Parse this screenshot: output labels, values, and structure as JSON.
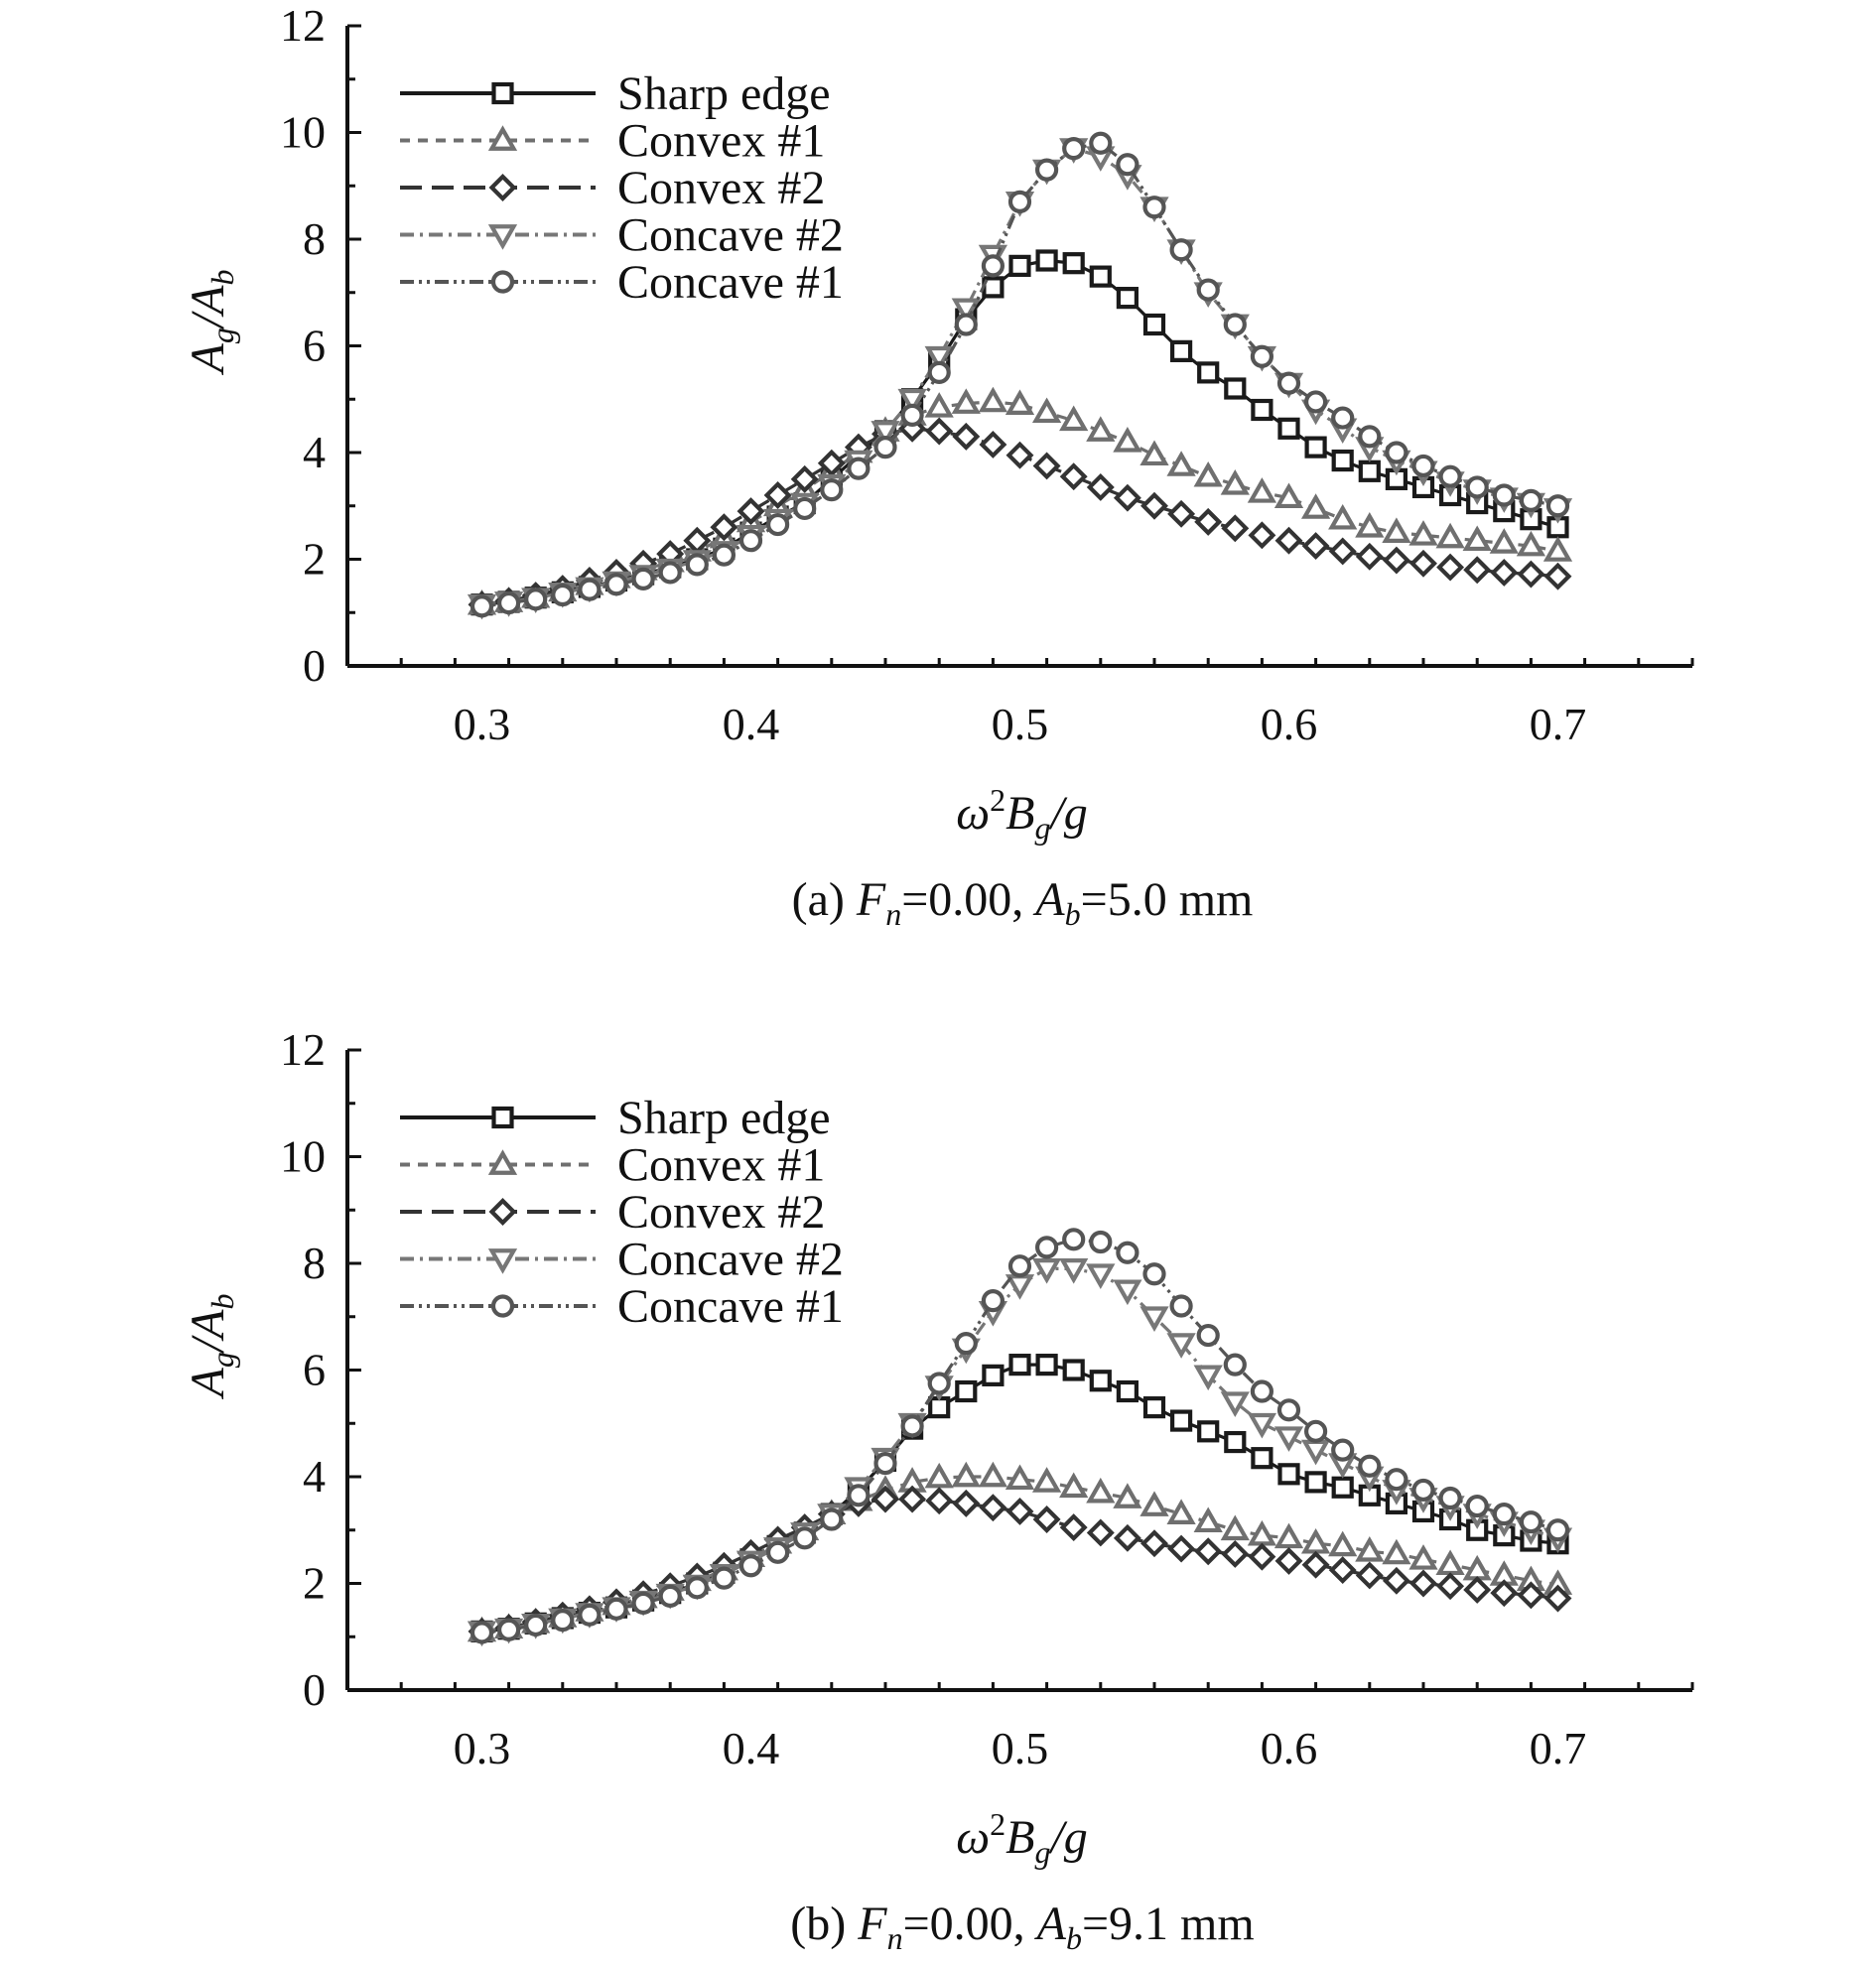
{
  "chart_data": [
    {
      "type": "line",
      "panel": "a",
      "caption": {
        "prefix": "(a) ",
        "fn": "F",
        "fn_sub": "n",
        "fn_value": "=0.00, ",
        "ab": "A",
        "ab_sub": "b",
        "ab_value": "=5.0 mm"
      },
      "xlabel": {
        "omega": "ω",
        "sup": "2",
        "b": "B",
        "b_sub": "g",
        "rest": "/g"
      },
      "ylabel": {
        "a1": "A",
        "s1": "g",
        "slash": "/",
        "a2": "A",
        "s2": "b"
      },
      "xlim": [
        0.25,
        0.75
      ],
      "ylim": [
        0,
        12
      ],
      "xticks": [
        "0.3",
        "0.4",
        "0.5",
        "0.6",
        "0.7"
      ],
      "yticks": [
        "0",
        "2",
        "4",
        "6",
        "8",
        "10",
        "12"
      ],
      "x": [
        0.3,
        0.31,
        0.32,
        0.33,
        0.34,
        0.35,
        0.36,
        0.37,
        0.38,
        0.39,
        0.4,
        0.41,
        0.42,
        0.43,
        0.44,
        0.45,
        0.46,
        0.47,
        0.48,
        0.49,
        0.5,
        0.51,
        0.52,
        0.53,
        0.54,
        0.55,
        0.56,
        0.57,
        0.58,
        0.59,
        0.6,
        0.61,
        0.62,
        0.63,
        0.64,
        0.65,
        0.66,
        0.67,
        0.68,
        0.69,
        0.7
      ],
      "series": [
        {
          "name": "Sharp edge",
          "marker": "square",
          "dash": "",
          "color": "#1a1a1a",
          "values": [
            1.15,
            1.2,
            1.28,
            1.38,
            1.48,
            1.6,
            1.72,
            1.85,
            2.0,
            2.2,
            2.5,
            2.8,
            3.05,
            3.5,
            3.95,
            4.4,
            5.0,
            5.7,
            6.5,
            7.1,
            7.5,
            7.6,
            7.55,
            7.3,
            6.9,
            6.4,
            5.9,
            5.5,
            5.2,
            4.8,
            4.45,
            4.1,
            3.85,
            3.65,
            3.5,
            3.35,
            3.2,
            3.05,
            2.9,
            2.75,
            2.6
          ]
        },
        {
          "name": "Convex #1",
          "marker": "triangle-up",
          "dash": "10,8",
          "color": "#6f6f6f",
          "values": [
            1.15,
            1.2,
            1.28,
            1.4,
            1.52,
            1.65,
            1.8,
            1.95,
            2.15,
            2.4,
            2.7,
            3.0,
            3.3,
            3.65,
            4.0,
            4.4,
            4.7,
            4.85,
            4.92,
            4.95,
            4.9,
            4.75,
            4.6,
            4.4,
            4.2,
            3.95,
            3.75,
            3.55,
            3.4,
            3.25,
            3.15,
            2.95,
            2.75,
            2.6,
            2.5,
            2.45,
            2.4,
            2.35,
            2.3,
            2.25,
            2.15
          ]
        },
        {
          "name": "Convex #2",
          "marker": "diamond",
          "dash": "22,10",
          "color": "#333333",
          "values": [
            1.15,
            1.22,
            1.32,
            1.45,
            1.6,
            1.75,
            1.92,
            2.1,
            2.35,
            2.6,
            2.9,
            3.2,
            3.5,
            3.8,
            4.1,
            4.35,
            4.45,
            4.4,
            4.3,
            4.15,
            3.95,
            3.75,
            3.55,
            3.35,
            3.15,
            3.0,
            2.85,
            2.7,
            2.58,
            2.45,
            2.35,
            2.25,
            2.15,
            2.05,
            1.98,
            1.92,
            1.85,
            1.8,
            1.75,
            1.72,
            1.68
          ]
        },
        {
          "name": "Concave #2",
          "marker": "triangle-down",
          "dash": "14,6,3,6",
          "color": "#777777",
          "values": [
            1.15,
            1.2,
            1.27,
            1.37,
            1.47,
            1.58,
            1.7,
            1.82,
            1.98,
            2.15,
            2.45,
            2.75,
            3.05,
            3.4,
            3.85,
            4.4,
            5.0,
            5.8,
            6.7,
            7.7,
            8.7,
            9.3,
            9.7,
            9.55,
            9.2,
            8.6,
            7.8,
            7.0,
            6.4,
            5.8,
            5.3,
            4.8,
            4.45,
            4.1,
            3.85,
            3.65,
            3.45,
            3.3,
            3.15,
            3.05,
            2.95
          ]
        },
        {
          "name": "Concave #1",
          "marker": "circle",
          "dash": "14,5,3,5,3,5",
          "color": "#555555",
          "values": [
            1.12,
            1.18,
            1.25,
            1.33,
            1.43,
            1.53,
            1.63,
            1.75,
            1.9,
            2.08,
            2.35,
            2.65,
            2.95,
            3.3,
            3.7,
            4.1,
            4.7,
            5.5,
            6.4,
            7.5,
            8.7,
            9.3,
            9.7,
            9.8,
            9.4,
            8.6,
            7.8,
            7.05,
            6.4,
            5.8,
            5.3,
            4.95,
            4.65,
            4.3,
            4.0,
            3.75,
            3.55,
            3.35,
            3.2,
            3.1,
            3.0
          ]
        }
      ]
    },
    {
      "type": "line",
      "panel": "b",
      "caption": {
        "prefix": "(b) ",
        "fn": "F",
        "fn_sub": "n",
        "fn_value": "=0.00, ",
        "ab": "A",
        "ab_sub": "b",
        "ab_value": "=9.1 mm"
      },
      "xlabel": {
        "omega": "ω",
        "sup": "2",
        "b": "B",
        "b_sub": "g",
        "rest": "/g"
      },
      "ylabel": {
        "a1": "A",
        "s1": "g",
        "slash": "/",
        "a2": "A",
        "s2": "b"
      },
      "xlim": [
        0.25,
        0.75
      ],
      "ylim": [
        0,
        12
      ],
      "xticks": [
        "0.3",
        "0.4",
        "0.5",
        "0.6",
        "0.7"
      ],
      "yticks": [
        "0",
        "2",
        "4",
        "6",
        "8",
        "10",
        "12"
      ],
      "x": [
        0.3,
        0.31,
        0.32,
        0.33,
        0.34,
        0.35,
        0.36,
        0.37,
        0.38,
        0.39,
        0.4,
        0.41,
        0.42,
        0.43,
        0.44,
        0.45,
        0.46,
        0.47,
        0.48,
        0.49,
        0.5,
        0.51,
        0.52,
        0.53,
        0.54,
        0.55,
        0.56,
        0.57,
        0.58,
        0.59,
        0.6,
        0.61,
        0.62,
        0.63,
        0.64,
        0.65,
        0.66,
        0.67,
        0.68,
        0.69,
        0.7
      ],
      "series": [
        {
          "name": "Sharp edge",
          "marker": "square",
          "dash": "",
          "color": "#1a1a1a",
          "values": [
            1.1,
            1.15,
            1.25,
            1.35,
            1.45,
            1.55,
            1.68,
            1.82,
            2.0,
            2.2,
            2.45,
            2.7,
            2.95,
            3.3,
            3.75,
            4.3,
            4.9,
            5.3,
            5.6,
            5.9,
            6.1,
            6.1,
            6.0,
            5.8,
            5.6,
            5.3,
            5.05,
            4.85,
            4.65,
            4.35,
            4.05,
            3.9,
            3.8,
            3.65,
            3.5,
            3.35,
            3.2,
            3.0,
            2.9,
            2.8,
            2.75
          ]
        },
        {
          "name": "Convex #1",
          "marker": "triangle-up",
          "dash": "10,8",
          "color": "#6f6f6f",
          "values": [
            1.1,
            1.16,
            1.26,
            1.37,
            1.48,
            1.6,
            1.73,
            1.87,
            2.05,
            2.25,
            2.5,
            2.75,
            3.0,
            3.3,
            3.55,
            3.75,
            3.9,
            3.98,
            4.0,
            4.0,
            3.95,
            3.9,
            3.8,
            3.7,
            3.6,
            3.45,
            3.3,
            3.15,
            3.0,
            2.9,
            2.85,
            2.75,
            2.7,
            2.6,
            2.55,
            2.45,
            2.35,
            2.25,
            2.15,
            2.05,
            1.98
          ]
        },
        {
          "name": "Convex #2",
          "marker": "diamond",
          "dash": "22,10",
          "color": "#333333",
          "values": [
            1.1,
            1.17,
            1.28,
            1.4,
            1.52,
            1.65,
            1.8,
            1.95,
            2.13,
            2.33,
            2.57,
            2.82,
            3.05,
            3.3,
            3.5,
            3.58,
            3.58,
            3.55,
            3.5,
            3.42,
            3.35,
            3.2,
            3.05,
            2.95,
            2.85,
            2.75,
            2.65,
            2.6,
            2.55,
            2.5,
            2.42,
            2.35,
            2.25,
            2.15,
            2.05,
            2.0,
            1.95,
            1.88,
            1.82,
            1.78,
            1.72
          ]
        },
        {
          "name": "Concave #2",
          "marker": "triangle-down",
          "dash": "14,6,3,6",
          "color": "#777777",
          "values": [
            1.1,
            1.15,
            1.24,
            1.34,
            1.44,
            1.55,
            1.67,
            1.8,
            1.97,
            2.17,
            2.42,
            2.67,
            2.95,
            3.3,
            3.8,
            4.35,
            5.0,
            5.7,
            6.4,
            7.1,
            7.6,
            7.9,
            7.9,
            7.8,
            7.5,
            7.0,
            6.5,
            5.9,
            5.4,
            5.0,
            4.75,
            4.5,
            4.25,
            4.0,
            3.75,
            3.6,
            3.45,
            3.3,
            3.15,
            3.0,
            2.85
          ]
        },
        {
          "name": "Concave #1",
          "marker": "circle",
          "dash": "14,5,3,5,3,5",
          "color": "#555555",
          "values": [
            1.08,
            1.13,
            1.22,
            1.31,
            1.41,
            1.52,
            1.63,
            1.76,
            1.92,
            2.1,
            2.33,
            2.58,
            2.85,
            3.2,
            3.65,
            4.25,
            4.95,
            5.75,
            6.5,
            7.3,
            7.95,
            8.3,
            8.45,
            8.4,
            8.2,
            7.8,
            7.2,
            6.65,
            6.1,
            5.6,
            5.25,
            4.85,
            4.5,
            4.2,
            3.95,
            3.75,
            3.6,
            3.45,
            3.3,
            3.15,
            3.0
          ]
        }
      ]
    }
  ]
}
